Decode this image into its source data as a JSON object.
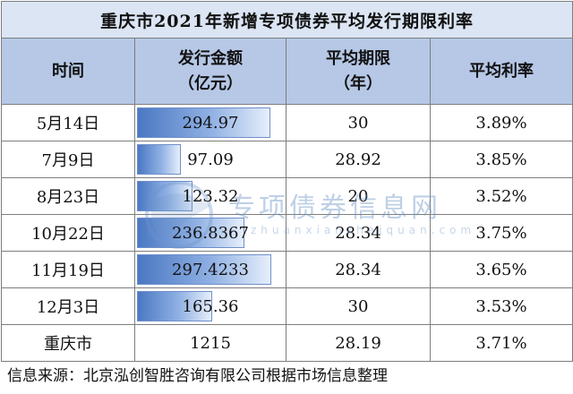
{
  "table": {
    "title": "重庆市2021年新增专项债券平均发行期限利率",
    "headers": {
      "time": "时间",
      "amount_line1": "发行金额",
      "amount_line2": "（亿元）",
      "term_line1": "平均期限",
      "term_line2": "（年）",
      "rate": "平均利率"
    },
    "rows": [
      {
        "date": "5月14日",
        "amount": "294.97",
        "amount_value": 294.97,
        "term": "30",
        "rate": "3.89%"
      },
      {
        "date": "7月9日",
        "amount": "97.09",
        "amount_value": 97.09,
        "term": "28.92",
        "rate": "3.85%"
      },
      {
        "date": "8月23日",
        "amount": "123.32",
        "amount_value": 123.32,
        "term": "20",
        "rate": "3.52%"
      },
      {
        "date": "10月22日",
        "amount": "236.8367",
        "amount_value": 236.8367,
        "term": "28.34",
        "rate": "3.75%"
      },
      {
        "date": "11月19日",
        "amount": "297.4233",
        "amount_value": 297.4233,
        "term": "28.34",
        "rate": "3.65%"
      },
      {
        "date": "12月3日",
        "amount": "165.36",
        "amount_value": 165.36,
        "term": "30",
        "rate": "3.53%"
      }
    ],
    "total": {
      "date": "重庆市",
      "amount": "1215",
      "term": "28.19",
      "rate": "3.71%"
    }
  },
  "footer": "信息来源：北京泓创智胜咨询有限公司根据市场信息整理",
  "watermark": {
    "text": "专项债券信息网",
    "sub": "zhuanxianzhaiquan.com"
  },
  "colors": {
    "title_bg": "#dbe5f4",
    "header_bg": "#b6c8e6",
    "bar": "#4b78c3"
  }
}
